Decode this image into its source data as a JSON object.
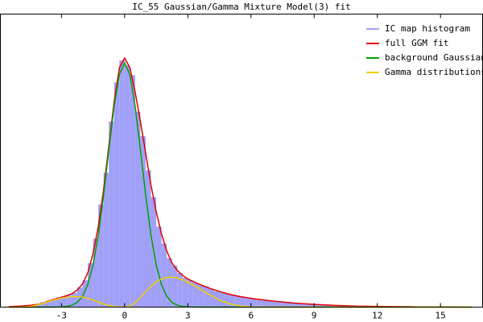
{
  "chart_data": {
    "type": "histogram",
    "title": "IC_55 Gaussian/Gamma Mixture Model(3) fit",
    "xlim": [
      -5.9,
      17
    ],
    "ylim": [
      0,
      1.2
    ],
    "xticks": [
      -3,
      0,
      3,
      6,
      9,
      12,
      15
    ],
    "legend": "top-right",
    "histogram": {
      "name": "IC map histogram",
      "color": "#a0a0f8",
      "bins": [
        -4.5,
        -4.25,
        -4,
        -3.75,
        -3.5,
        -3.25,
        -3,
        -2.75,
        -2.5,
        -2.25,
        -2,
        -1.75,
        -1.5,
        -1.25,
        -1,
        -0.75,
        -0.5,
        -0.25,
        0,
        0.25,
        0.5,
        0.75,
        1,
        1.25,
        1.5,
        1.75,
        2,
        2.25,
        2.5,
        2.75,
        3,
        3.25,
        3.5,
        3.75,
        4,
        4.25,
        4.5,
        4.75,
        5,
        5.25,
        5.5,
        5.75,
        6,
        6.25,
        6.5,
        6.75,
        7,
        7.25,
        7.5,
        7.75,
        8,
        8.25,
        8.5,
        8.75,
        9,
        9.25,
        9.5,
        9.75,
        10,
        10.25,
        10.5
      ],
      "counts": [
        0.01,
        0.012,
        0.02,
        0.024,
        0.03,
        0.04,
        0.045,
        0.05,
        0.058,
        0.08,
        0.11,
        0.18,
        0.28,
        0.42,
        0.55,
        0.76,
        0.92,
        1.01,
        0.99,
        0.95,
        0.8,
        0.7,
        0.56,
        0.45,
        0.33,
        0.26,
        0.2,
        0.17,
        0.14,
        0.12,
        0.11,
        0.1,
        0.09,
        0.085,
        0.075,
        0.065,
        0.06,
        0.055,
        0.05,
        0.045,
        0.04,
        0.037,
        0.034,
        0.03,
        0.028,
        0.026,
        0.023,
        0.02,
        0.018,
        0.017,
        0.015,
        0.013,
        0.012,
        0.011,
        0.01,
        0.009,
        0.008,
        0.007,
        0.006,
        0.005
      ]
    },
    "x": [
      -5.5,
      -5,
      -4.5,
      -4,
      -3.5,
      -3,
      -2.75,
      -2.5,
      -2.25,
      -2,
      -1.75,
      -1.5,
      -1.25,
      -1,
      -0.75,
      -0.5,
      -0.25,
      0,
      0.25,
      0.5,
      0.75,
      1,
      1.25,
      1.5,
      1.75,
      2,
      2.25,
      2.5,
      2.75,
      3,
      3.5,
      4,
      4.5,
      5,
      5.5,
      6,
      7,
      8,
      9,
      10,
      11,
      12,
      13,
      14,
      15,
      16,
      16.5
    ],
    "series": [
      {
        "name": "full GGM fit",
        "color": "#e00000",
        "values": [
          0.002,
          0.004,
          0.007,
          0.013,
          0.028,
          0.04,
          0.047,
          0.055,
          0.07,
          0.095,
          0.14,
          0.22,
          0.33,
          0.48,
          0.66,
          0.84,
          0.98,
          1.02,
          0.98,
          0.88,
          0.76,
          0.63,
          0.5,
          0.39,
          0.3,
          0.23,
          0.18,
          0.15,
          0.13,
          0.115,
          0.095,
          0.078,
          0.064,
          0.052,
          0.043,
          0.036,
          0.025,
          0.017,
          0.011,
          0.007,
          0.004,
          0.003,
          0.002,
          0.001,
          0.001,
          0,
          0
        ]
      },
      {
        "name": "background Gaussian",
        "color": "#00a000",
        "values": [
          0,
          0,
          0,
          0,
          0,
          0.001,
          0.003,
          0.008,
          0.019,
          0.044,
          0.092,
          0.172,
          0.295,
          0.458,
          0.644,
          0.823,
          0.952,
          1.0,
          0.952,
          0.823,
          0.644,
          0.458,
          0.295,
          0.172,
          0.092,
          0.044,
          0.019,
          0.008,
          0.003,
          0.001,
          0,
          0,
          0,
          0,
          0,
          0,
          0,
          0,
          0,
          0,
          0,
          0,
          0,
          0,
          0,
          0,
          0
        ]
      },
      {
        "name": "Gamma distributions",
        "color": "#f0d000",
        "values": [
          0,
          0,
          0.002,
          0.012,
          0.026,
          0.037,
          0.041,
          0.043,
          0.043,
          0.041,
          0.036,
          0.029,
          0.021,
          0.013,
          0.007,
          0.003,
          0.001,
          0,
          0.004,
          0.018,
          0.04,
          0.063,
          0.085,
          0.103,
          0.115,
          0.121,
          0.122,
          0.119,
          0.112,
          0.102,
          0.078,
          0.052,
          0.029,
          0.013,
          0.005,
          0.001,
          0,
          0,
          0,
          0,
          0,
          0,
          0,
          0,
          0,
          0,
          0
        ]
      }
    ]
  }
}
